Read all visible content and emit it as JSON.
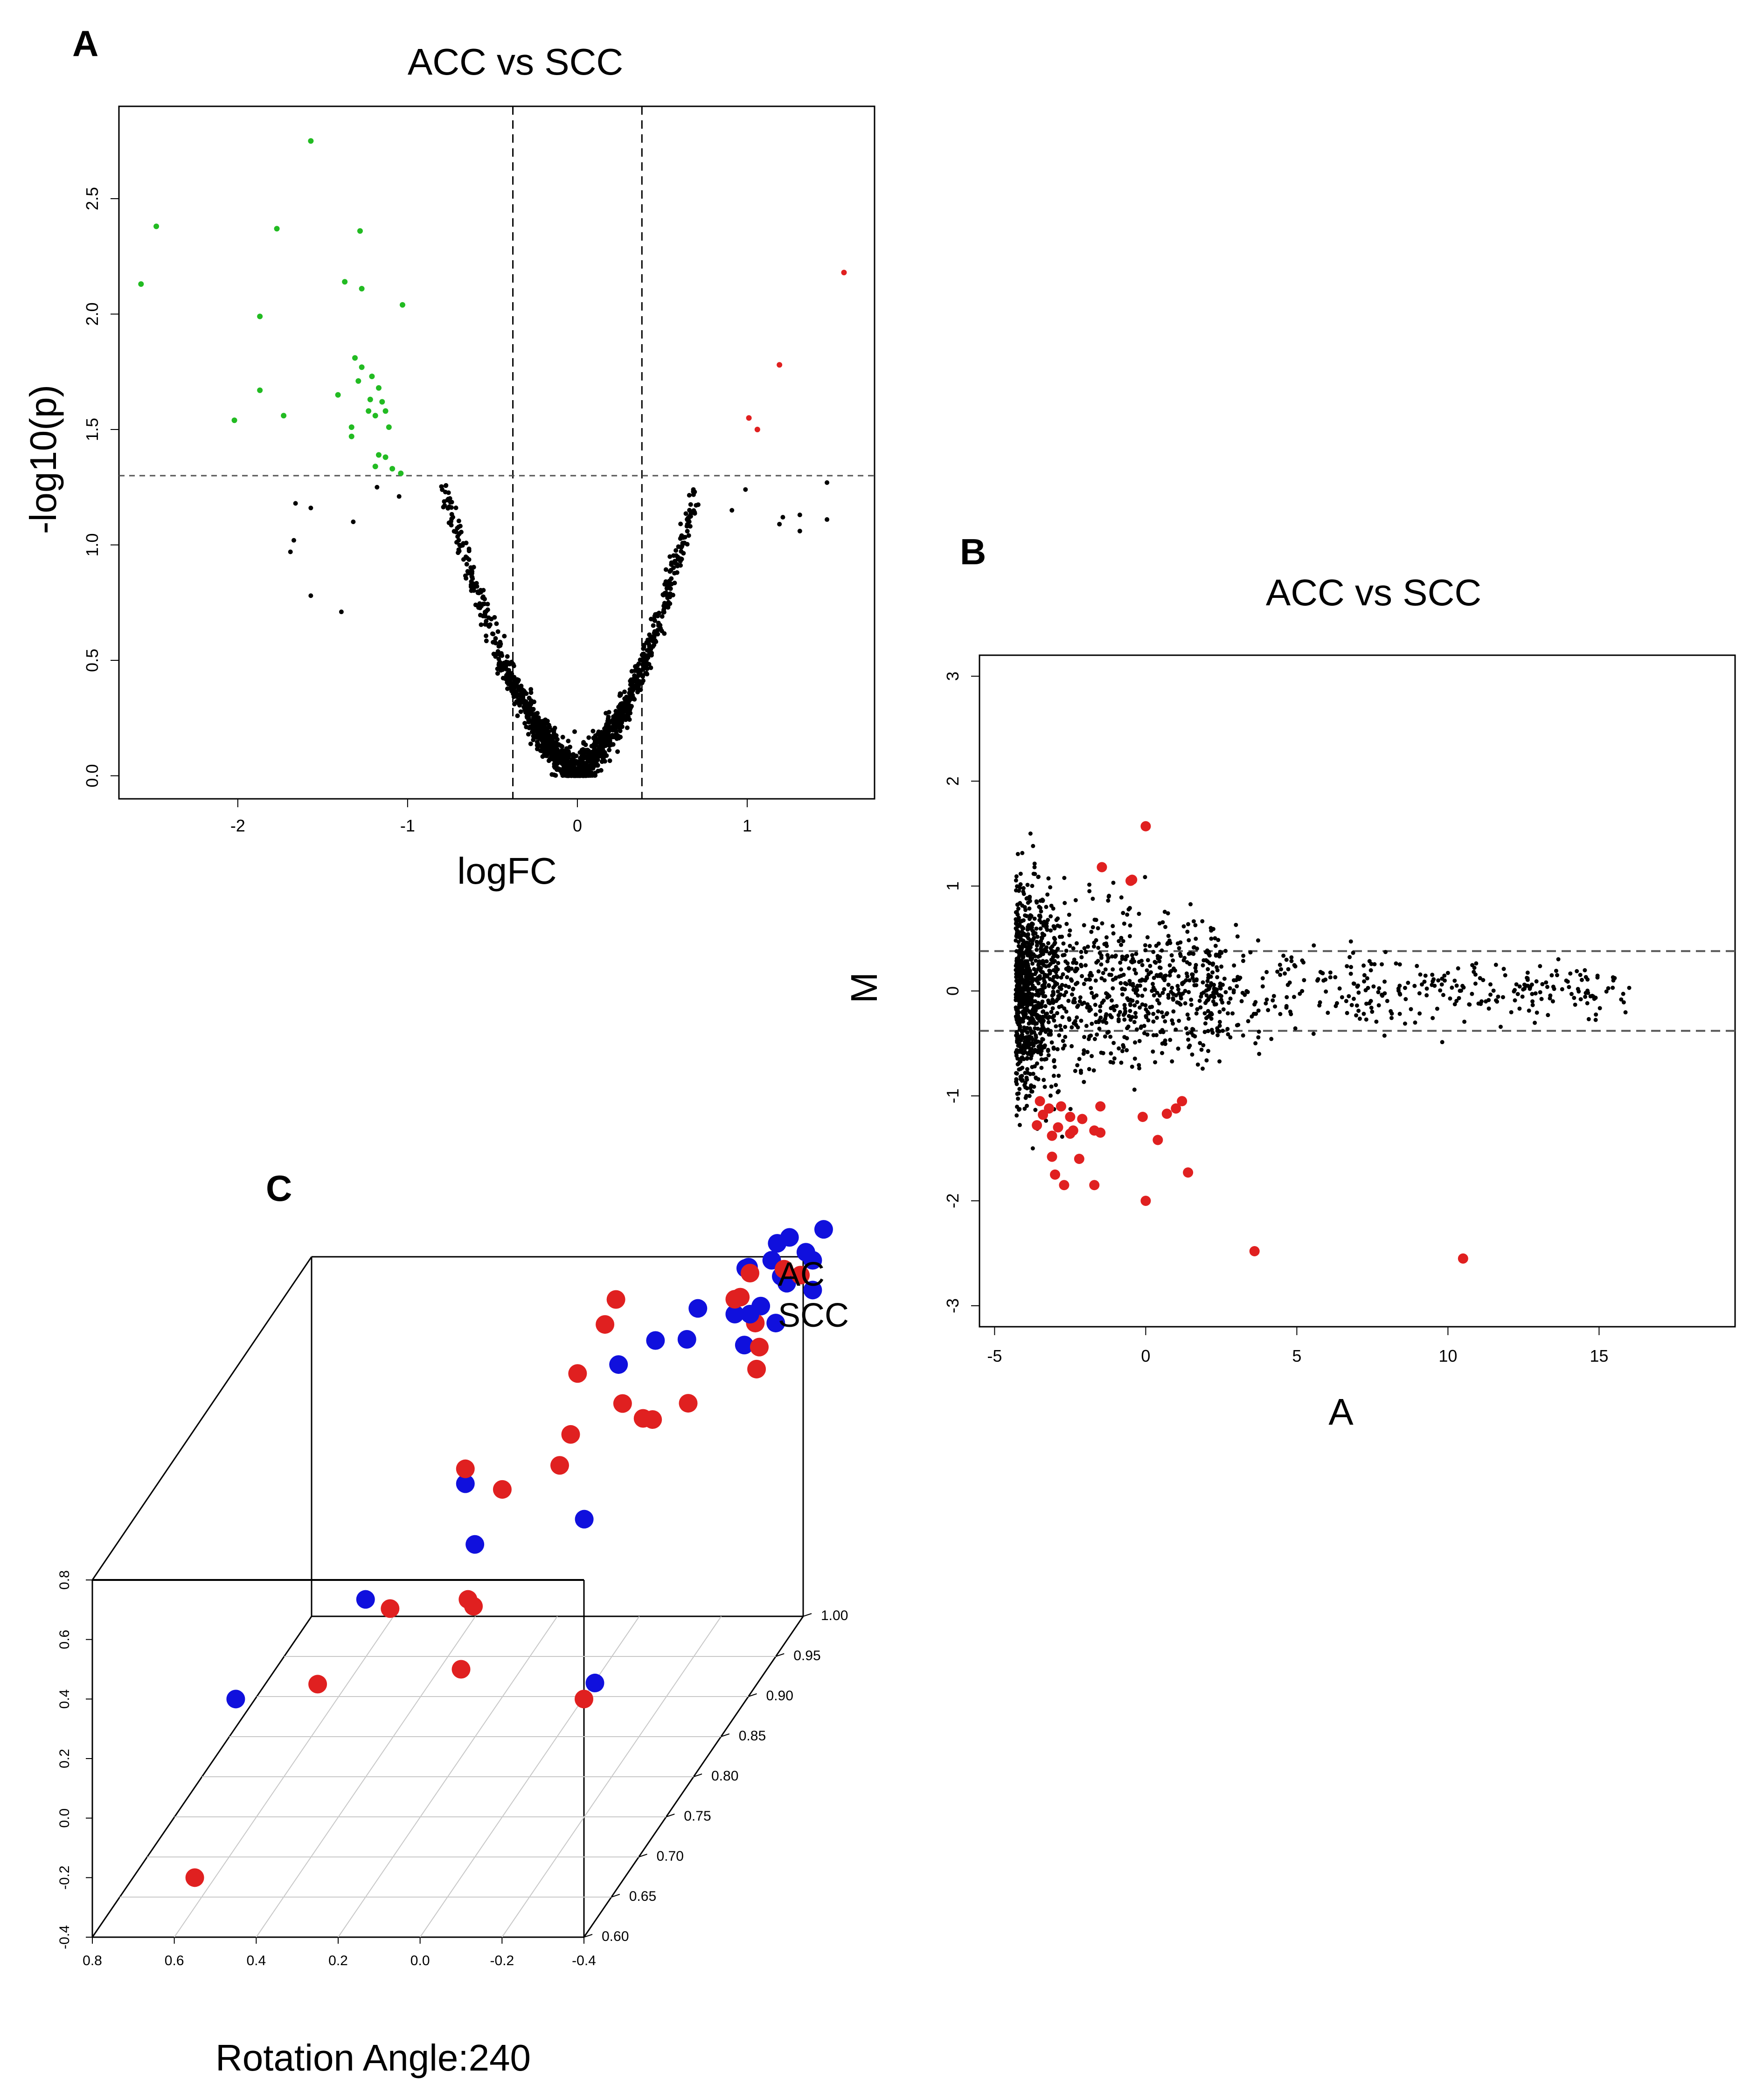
{
  "colors": {
    "up": "#e02020",
    "down": "#22bb22",
    "ns": "#000000",
    "ac": "#e02020",
    "scc": "#1010dd",
    "guide": "#555555"
  },
  "chart_data": [
    {
      "panel": "A",
      "type": "scatter",
      "title": "ACC vs SCC",
      "xlabel": "logFC",
      "ylabel": "-log10(p)",
      "xlim": [
        -2.7,
        1.75
      ],
      "ylim": [
        -0.1,
        2.9
      ],
      "xticks": [
        -2,
        -1,
        0,
        1
      ],
      "yticks": [
        0.0,
        0.5,
        1.0,
        1.5,
        2.0,
        2.5
      ],
      "vlines": [
        -0.38,
        0.38
      ],
      "hline": 1.3,
      "down_regulated": [
        [
          -1.57,
          2.75
        ],
        [
          -2.48,
          2.38
        ],
        [
          -1.77,
          2.37
        ],
        [
          -1.28,
          2.36
        ],
        [
          -2.57,
          2.13
        ],
        [
          -1.37,
          2.14
        ],
        [
          -1.27,
          2.11
        ],
        [
          -1.03,
          2.04
        ],
        [
          -1.87,
          1.99
        ],
        [
          -1.31,
          1.81
        ],
        [
          -1.27,
          1.77
        ],
        [
          -1.21,
          1.73
        ],
        [
          -1.29,
          1.71
        ],
        [
          -1.17,
          1.68
        ],
        [
          -1.87,
          1.67
        ],
        [
          -1.41,
          1.65
        ],
        [
          -1.22,
          1.63
        ],
        [
          -1.15,
          1.62
        ],
        [
          -1.23,
          1.58
        ],
        [
          -1.13,
          1.58
        ],
        [
          -1.73,
          1.56
        ],
        [
          -1.19,
          1.56
        ],
        [
          -2.02,
          1.54
        ],
        [
          -1.33,
          1.51
        ],
        [
          -1.11,
          1.51
        ],
        [
          -1.33,
          1.47
        ],
        [
          -1.17,
          1.39
        ],
        [
          -1.13,
          1.38
        ],
        [
          -1.19,
          1.34
        ],
        [
          -1.09,
          1.33
        ],
        [
          -1.04,
          1.31
        ]
      ],
      "up_regulated": [
        [
          1.57,
          2.18
        ],
        [
          1.19,
          1.78
        ],
        [
          1.01,
          1.55
        ],
        [
          1.06,
          1.5
        ]
      ],
      "not_significant_outliers": [
        [
          -1.66,
          1.18
        ],
        [
          -1.57,
          1.16
        ],
        [
          -1.67,
          1.02
        ],
        [
          -1.69,
          0.97
        ],
        [
          -1.57,
          0.78
        ],
        [
          -1.39,
          0.71
        ],
        [
          1.47,
          1.27
        ],
        [
          1.31,
          1.13
        ],
        [
          1.47,
          1.11
        ],
        [
          1.21,
          1.12
        ],
        [
          1.31,
          1.06
        ],
        [
          1.19,
          1.09
        ],
        [
          0.99,
          1.24
        ],
        [
          0.91,
          1.15
        ],
        [
          -1.32,
          1.1
        ],
        [
          -1.18,
          1.25
        ],
        [
          -1.05,
          1.21
        ]
      ],
      "volcano_cloud": {
        "n_points": 1500,
        "shape": "-log10(p) rising with |logFC|, dense near origin"
      }
    },
    {
      "panel": "B",
      "type": "scatter",
      "title": "ACC vs SCC",
      "xlabel": "A",
      "ylabel": "M",
      "xlim": [
        -5.5,
        19.5
      ],
      "ylim": [
        -3.2,
        3.2
      ],
      "xticks": [
        -5,
        0,
        5,
        10,
        15
      ],
      "yticks": [
        -3,
        -2,
        -1,
        0,
        1,
        2,
        3
      ],
      "hlines": [
        0.38,
        -0.38
      ],
      "significant": [
        [
          0.0,
          1.57
        ],
        [
          -1.45,
          1.18
        ],
        [
          -0.5,
          1.05
        ],
        [
          -0.45,
          1.06
        ],
        [
          -3.5,
          -1.05
        ],
        [
          -3.2,
          -1.12
        ],
        [
          -2.8,
          -1.1
        ],
        [
          -1.5,
          -1.1
        ],
        [
          -3.4,
          -1.18
        ],
        [
          -2.5,
          -1.2
        ],
        [
          -2.1,
          -1.22
        ],
        [
          -0.1,
          -1.2
        ],
        [
          0.7,
          -1.17
        ],
        [
          1.0,
          -1.12
        ],
        [
          1.2,
          -1.05
        ],
        [
          -3.6,
          -1.28
        ],
        [
          -2.9,
          -1.3
        ],
        [
          -2.4,
          -1.33
        ],
        [
          -1.7,
          -1.33
        ],
        [
          -1.5,
          -1.35
        ],
        [
          -3.1,
          -1.38
        ],
        [
          -2.5,
          -1.36
        ],
        [
          0.4,
          -1.42
        ],
        [
          -3.1,
          -1.58
        ],
        [
          -2.2,
          -1.6
        ],
        [
          -3.0,
          -1.75
        ],
        [
          1.4,
          -1.73
        ],
        [
          -2.7,
          -1.85
        ],
        [
          -1.7,
          -1.85
        ],
        [
          0.0,
          -2.0
        ],
        [
          3.6,
          -2.48
        ],
        [
          10.5,
          -2.55
        ]
      ],
      "ma_cloud": {
        "n_points": 1800,
        "shape": "dense band at A≈-4 to -3 narrowing toward high A"
      }
    },
    {
      "panel": "C",
      "type": "scatter3d",
      "caption": "Rotation Angle:240",
      "legend": [
        "AC",
        "SCC"
      ],
      "x_ticks": [
        "0.8",
        "0.6",
        "0.4",
        "0.2",
        "0.0",
        "-0.2",
        "-0.4"
      ],
      "y_ticks": [
        "0.8",
        "0.6",
        "0.4",
        "0.2",
        "0.0",
        "-0.2",
        "-0.4"
      ],
      "z_ticks": [
        "0.60",
        "0.65",
        "0.70",
        "0.75",
        "0.80",
        "0.85",
        "0.90",
        "0.95",
        "1.00"
      ],
      "AC": [
        [
          0.55,
          -0.2,
          0.6
        ],
        [
          0.25,
          0.45,
          0.6
        ],
        [
          -0.1,
          0.5,
          0.6
        ],
        [
          -0.4,
          0.4,
          0.6
        ],
        [
          0.1,
          0.65,
          0.62
        ],
        [
          0.05,
          0.85,
          0.72
        ],
        [
          -0.05,
          0.6,
          0.65
        ],
        [
          -0.05,
          0.55,
          0.66
        ],
        [
          0.0,
          0.7,
          0.75
        ],
        [
          -0.1,
          0.7,
          0.78
        ],
        [
          -0.1,
          0.75,
          0.8
        ],
        [
          -0.05,
          0.85,
          0.9
        ],
        [
          -0.05,
          0.88,
          0.92
        ],
        [
          -0.3,
          0.8,
          0.8
        ],
        [
          -0.2,
          0.8,
          0.82
        ],
        [
          -0.25,
          0.75,
          0.82
        ],
        [
          -0.32,
          0.72,
          0.85
        ],
        [
          -0.05,
          0.82,
          0.85
        ],
        [
          -0.35,
          0.72,
          0.95
        ],
        [
          -0.4,
          0.72,
          0.92
        ],
        [
          -0.42,
          0.7,
          0.9
        ],
        [
          -0.3,
          0.8,
          0.95
        ],
        [
          -0.3,
          0.78,
          0.96
        ],
        [
          -0.42,
          0.8,
          0.98
        ],
        [
          -0.38,
          0.82,
          0.98
        ]
      ],
      "SCC": [
        [
          0.45,
          0.4,
          0.6
        ],
        [
          0.2,
          0.6,
          0.65
        ],
        [
          0.0,
          0.65,
          0.7
        ],
        [
          0.05,
          0.8,
          0.72
        ],
        [
          -0.2,
          0.6,
          0.75
        ],
        [
          -0.4,
          0.4,
          0.62
        ],
        [
          -0.15,
          0.85,
          0.85
        ],
        [
          -0.2,
          0.85,
          0.88
        ],
        [
          -0.25,
          0.8,
          0.9
        ],
        [
          -0.25,
          0.85,
          0.92
        ],
        [
          -0.3,
          0.75,
          0.95
        ],
        [
          -0.35,
          0.75,
          0.96
        ],
        [
          -0.3,
          0.85,
          0.97
        ],
        [
          -0.35,
          0.85,
          0.98
        ],
        [
          -0.4,
          0.8,
          0.97
        ],
        [
          -0.42,
          0.85,
          0.99
        ],
        [
          -0.28,
          0.8,
          0.99
        ],
        [
          -0.35,
          0.88,
          0.99
        ],
        [
          -0.38,
          0.9,
          0.99
        ],
        [
          -0.4,
          0.85,
          0.96
        ],
        [
          -0.45,
          0.9,
          1.0
        ],
        [
          -0.45,
          0.85,
          0.98
        ],
        [
          -0.35,
          0.7,
          0.93
        ],
        [
          -0.4,
          0.72,
          0.95
        ],
        [
          -0.45,
          0.75,
          0.98
        ]
      ]
    }
  ]
}
